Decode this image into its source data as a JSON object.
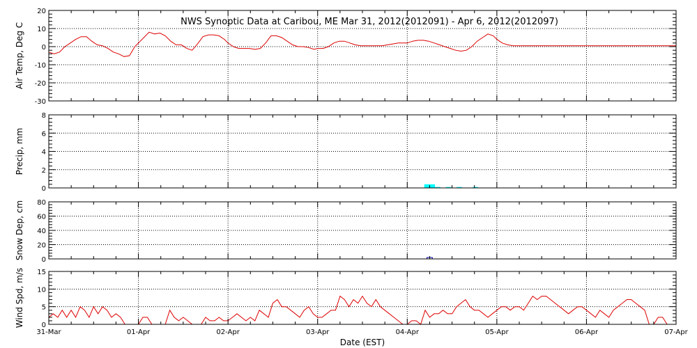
{
  "title": "NWS Synoptic Data at Caribou, ME   Mar 31, 2012(2012091) - Apr  6, 2012(2012097)",
  "xlabel": "Date (EST)",
  "x_ticks": [
    "31-Mar",
    "01-Apr",
    "02-Apr",
    "03-Apr",
    "04-Apr",
    "05-Apr",
    "06-Apr",
    "07-Apr"
  ],
  "colors": {
    "temp": "#dd0000",
    "precip": "#00ffff",
    "snow": "#0000aa",
    "wind": "#dd0000",
    "grid": "#000000"
  },
  "chart_data": [
    {
      "type": "line",
      "ylabel": "Air Temp, Deg C",
      "ylim": [
        -30,
        20
      ],
      "yticks": [
        -30,
        -20,
        -10,
        0,
        10,
        20
      ],
      "xlim": [
        0,
        7
      ],
      "grid": true,
      "series": [
        {
          "x": [
            0,
            0.06,
            0.12,
            0.18,
            0.24,
            0.3,
            0.36,
            0.42,
            0.48,
            0.54,
            0.6,
            0.66,
            0.72,
            0.78,
            0.84,
            0.9,
            0.96,
            1.0,
            1.06,
            1.12,
            1.18,
            1.24,
            1.3,
            1.36,
            1.42,
            1.48,
            1.54,
            1.6,
            1.66,
            1.72,
            1.78,
            1.84,
            1.9,
            1.96,
            2.0,
            2.06,
            2.12,
            2.18,
            2.24,
            2.3,
            2.36,
            2.42,
            2.48,
            2.54,
            2.6,
            2.66,
            2.72,
            2.78,
            2.84,
            2.9,
            2.96,
            3.0,
            3.06,
            3.12,
            3.18,
            3.24,
            3.3,
            3.36,
            3.42,
            3.48,
            3.54,
            3.6,
            3.66,
            3.72,
            3.78,
            3.84,
            3.9,
            3.96,
            4.0,
            4.06,
            4.12,
            4.18,
            4.24,
            4.3,
            4.36,
            4.42,
            4.48,
            4.54,
            4.6,
            4.66,
            4.72,
            4.78,
            4.84,
            4.9,
            4.96,
            5.0,
            5.06,
            5.12,
            5.18,
            5.24,
            5.3,
            5.36,
            5.42,
            5.48,
            5.54,
            5.6,
            5.66,
            5.72,
            5.78,
            5.84,
            5.9,
            5.96,
            6.0,
            6.06,
            6.12,
            6.18,
            6.24,
            6.3,
            6.36,
            6.42,
            6.48,
            6.54,
            6.6,
            6.66,
            6.72,
            6.78,
            6.84,
            6.9,
            6.96,
            7.0
          ],
          "y": [
            -3,
            -4,
            -3,
            0,
            2,
            4,
            5.5,
            5.5,
            3,
            1,
            0.5,
            -1,
            -3,
            -4,
            -5.5,
            -5,
            0,
            2,
            5,
            8,
            7,
            7.5,
            6,
            3,
            1,
            1,
            -1,
            -2,
            1.5,
            5.5,
            6.5,
            6.5,
            6,
            4,
            2,
            0,
            -1,
            -1,
            -1,
            -1.5,
            -1,
            2,
            6,
            6,
            5,
            3,
            1,
            0,
            0,
            -0.5,
            -1.5,
            -1,
            -1,
            0,
            2,
            3,
            3,
            2,
            1,
            0.5,
            0.5,
            0.5,
            0.5,
            0.5,
            1,
            1.5,
            2,
            2,
            2,
            3,
            3.5,
            3.5,
            3,
            2,
            1,
            0,
            -1,
            -2,
            -2.5,
            -2,
            0,
            3,
            5,
            7,
            6,
            4,
            2,
            1,
            0.5,
            0.5,
            0.5,
            0.5,
            0.5,
            0.5,
            0.5,
            0.5,
            0.5,
            0.5,
            0.5,
            0.5,
            0.5,
            0.5,
            0.5,
            0.5,
            0.5,
            0.5,
            0.5,
            0.5,
            0.5,
            0.5,
            0.5,
            0.5,
            0.5,
            0.5,
            0.5,
            0.5,
            0.5,
            0.5,
            0.5,
            0.5
          ]
        }
      ]
    },
    {
      "type": "bar",
      "ylabel": "Precip, mm",
      "ylim": [
        0,
        8
      ],
      "yticks": [
        0,
        2,
        4,
        6,
        8
      ],
      "xlim": [
        0,
        7
      ],
      "grid": true,
      "series": [
        {
          "x": [
            4.22,
            4.28,
            4.34,
            4.46,
            4.58,
            4.76
          ],
          "values": [
            0.4,
            0.4,
            0.1,
            0.1,
            0.1,
            0.1
          ]
        }
      ]
    },
    {
      "type": "bar",
      "ylabel": "Snow Dep, cm",
      "ylim": [
        0,
        80
      ],
      "yticks": [
        0,
        20,
        40,
        60,
        80
      ],
      "xlim": [
        0,
        7
      ],
      "grid": true,
      "series": [
        {
          "x": [
            4.25
          ],
          "values": [
            2
          ]
        }
      ]
    },
    {
      "type": "line",
      "ylabel": "Wind Spd, m/s",
      "ylim": [
        0,
        15
      ],
      "yticks": [
        0,
        5,
        10,
        15
      ],
      "xlim": [
        0,
        7
      ],
      "grid": true,
      "series": [
        {
          "x": [
            0,
            0.05,
            0.1,
            0.15,
            0.2,
            0.25,
            0.3,
            0.35,
            0.4,
            0.45,
            0.5,
            0.55,
            0.6,
            0.65,
            0.7,
            0.75,
            0.8,
            0.85,
            0.9,
            0.95,
            1.0,
            1.05,
            1.1,
            1.15,
            1.2,
            1.25,
            1.3,
            1.35,
            1.4,
            1.45,
            1.5,
            1.55,
            1.6,
            1.65,
            1.7,
            1.75,
            1.8,
            1.85,
            1.9,
            1.95,
            2.0,
            2.05,
            2.1,
            2.15,
            2.2,
            2.25,
            2.3,
            2.35,
            2.4,
            2.45,
            2.5,
            2.55,
            2.6,
            2.65,
            2.7,
            2.75,
            2.8,
            2.85,
            2.9,
            2.95,
            3.0,
            3.05,
            3.1,
            3.15,
            3.2,
            3.25,
            3.3,
            3.35,
            3.4,
            3.45,
            3.5,
            3.55,
            3.6,
            3.65,
            3.7,
            3.75,
            3.8,
            3.85,
            3.9,
            3.95,
            4.0,
            4.05,
            4.1,
            4.15,
            4.2,
            4.25,
            4.3,
            4.35,
            4.4,
            4.45,
            4.5,
            4.55,
            4.6,
            4.65,
            4.7,
            4.75,
            4.8,
            4.85,
            4.9,
            4.95,
            5.0,
            5.05,
            5.1,
            5.15,
            5.2,
            5.25,
            5.3,
            5.35,
            5.4,
            5.45,
            5.5,
            5.55,
            5.6,
            5.65,
            5.7,
            5.75,
            5.8,
            5.85,
            5.9,
            5.95,
            6.0,
            6.05,
            6.1,
            6.15,
            6.2,
            6.25,
            6.3,
            6.35,
            6.4,
            6.45,
            6.5,
            6.55,
            6.6,
            6.65,
            6.7,
            6.75,
            6.8,
            6.85,
            6.9,
            6.95,
            7.0
          ],
          "y": [
            2,
            3,
            2,
            4,
            2,
            4,
            2,
            5,
            4,
            2,
            5,
            3,
            5,
            4,
            2,
            3,
            2,
            0,
            0,
            0,
            0,
            2,
            2,
            0,
            0,
            0,
            0,
            4,
            2,
            1,
            2,
            1,
            0,
            0,
            0,
            2,
            1,
            1,
            2,
            1,
            1,
            2,
            3,
            2,
            1,
            2,
            1,
            4,
            3,
            2,
            6,
            7,
            5,
            5,
            4,
            3,
            2,
            4,
            5,
            3,
            2,
            2,
            3,
            4,
            4,
            8,
            7,
            5,
            7,
            6,
            8,
            6,
            5,
            7,
            5,
            4,
            3,
            2,
            1,
            0,
            0,
            1,
            1,
            0,
            4,
            2,
            3,
            3,
            4,
            3,
            3,
            5,
            6,
            7,
            5,
            4,
            4,
            3,
            2,
            3,
            4,
            5,
            5,
            4,
            5,
            5,
            4,
            6,
            8,
            7,
            8,
            8,
            7,
            6,
            5,
            4,
            3,
            4,
            5,
            5,
            4,
            3,
            2,
            4,
            3,
            2,
            4,
            5,
            6,
            7,
            7,
            6,
            5,
            4,
            0,
            0,
            2,
            2,
            0,
            0,
            0
          ]
        }
      ]
    }
  ]
}
